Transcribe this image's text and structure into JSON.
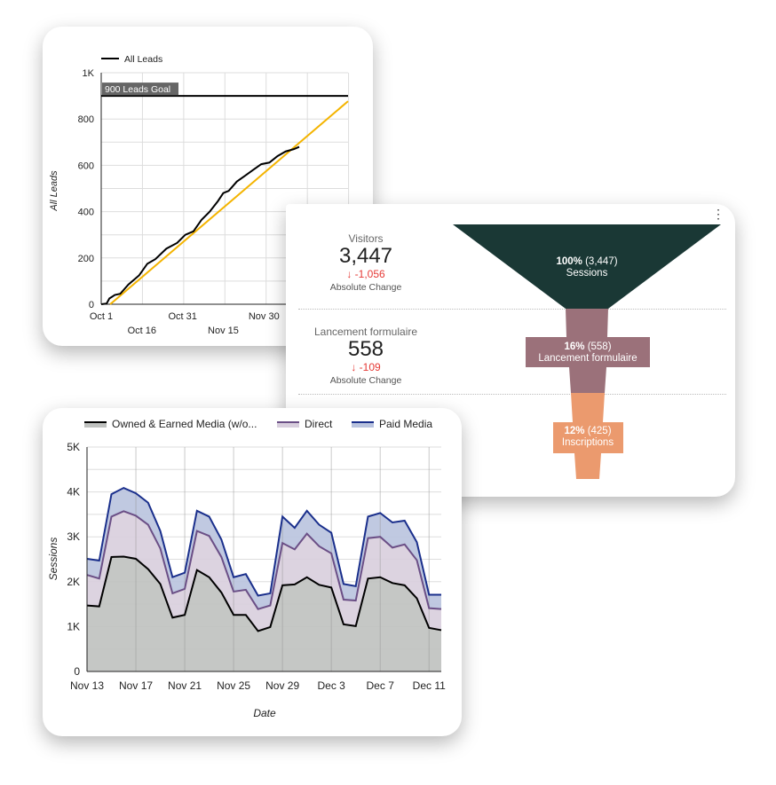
{
  "leads_chart": {
    "chart_data": {
      "type": "line",
      "legend": [
        "All Leads"
      ],
      "legend_position": "top-left",
      "ylabel": "All Leads",
      "yticks": [
        "0",
        "200",
        "400",
        "600",
        "800",
        "1K"
      ],
      "ylim": [
        0,
        1000
      ],
      "xticks_row1": [
        "Oct 1",
        "Oct 31",
        "Nov 30"
      ],
      "xticks_row2": [
        "Oct 16",
        "Nov 15"
      ],
      "xlim": [
        "Oct 1",
        "Dec 31"
      ],
      "grid": true,
      "goal": {
        "label": "900 Leads Goal",
        "value": 900
      },
      "series": [
        {
          "name": "All Leads",
          "color": "#000000",
          "days_from_oct1": [
            0,
            2,
            3,
            5,
            7,
            10,
            14,
            17,
            20,
            24,
            28,
            31,
            34,
            37,
            40,
            43,
            45,
            47,
            50,
            53,
            56,
            59,
            62,
            65,
            68,
            71,
            73
          ],
          "values": [
            0,
            3,
            25,
            40,
            45,
            85,
            125,
            175,
            195,
            240,
            265,
            300,
            315,
            365,
            400,
            445,
            480,
            490,
            530,
            555,
            580,
            605,
            612,
            640,
            660,
            670,
            680
          ]
        }
      ],
      "trendline": {
        "color": "#f4b400",
        "from": [
          "Oct 4",
          0
        ],
        "to": [
          "Dec 31",
          877
        ]
      }
    }
  },
  "funnel": {
    "menu_icon": "kebab-menu-icon",
    "metrics": [
      {
        "label": "Visitors",
        "value": "3,447",
        "change": "-1,056",
        "change_label": "Absolute Change"
      },
      {
        "label": "Lancement formulaire",
        "value": "558",
        "change": "-109",
        "change_label": "Absolute Change"
      }
    ],
    "change_arrow": "↓",
    "stages": [
      {
        "pct": "100%",
        "count": "(3,447)",
        "name": "Sessions",
        "color": "#1a3835"
      },
      {
        "pct": "16%",
        "count": "(558)",
        "name": "Lancement formulaire",
        "color": "#9b717a"
      },
      {
        "pct": "12%",
        "count": "(425)",
        "name": "Inscriptions",
        "color": "#eb9a6e"
      }
    ]
  },
  "sessions_chart": {
    "chart_data": {
      "type": "area",
      "stacked": true,
      "xlabel": "Date",
      "ylabel": "Sessions",
      "ylim": [
        0,
        5000
      ],
      "yticks": [
        "0",
        "1K",
        "2K",
        "3K",
        "4K",
        "5K"
      ],
      "xticks": [
        "Nov 13",
        "Nov 17",
        "Nov 21",
        "Nov 25",
        "Nov 29",
        "Dec 3",
        "Dec 7",
        "Dec 11"
      ],
      "x_start": "Nov 13",
      "x_end": "Dec 12",
      "grid": true,
      "legend_position": "top",
      "series": [
        {
          "name": "Owned & Earned Media (w/o...",
          "line": "#000000",
          "fill": "#bfc1bf",
          "values": [
            1470,
            1450,
            2550,
            2560,
            2510,
            2280,
            1950,
            1200,
            1260,
            2260,
            2100,
            1760,
            1260,
            1260,
            900,
            990,
            1920,
            1940,
            2100,
            1930,
            1870,
            1050,
            1010,
            2070,
            2100,
            1970,
            1920,
            1630,
            970,
            920
          ]
        },
        {
          "name": "Direct",
          "line": "#6b4f86",
          "fill": "#d8cedd",
          "values": [
            680,
            620,
            900,
            1010,
            960,
            990,
            790,
            540,
            580,
            870,
            920,
            790,
            520,
            560,
            490,
            480,
            940,
            780,
            970,
            860,
            760,
            550,
            570,
            900,
            900,
            790,
            910,
            850,
            440,
            470
          ]
        },
        {
          "name": "Paid Media",
          "line": "#1a2f8c",
          "fill": "#b9c3de",
          "values": [
            360,
            400,
            500,
            520,
            500,
            490,
            390,
            360,
            360,
            450,
            430,
            390,
            320,
            350,
            300,
            270,
            590,
            480,
            510,
            480,
            460,
            350,
            320,
            480,
            530,
            560,
            530,
            400,
            300,
            320
          ]
        }
      ]
    }
  }
}
